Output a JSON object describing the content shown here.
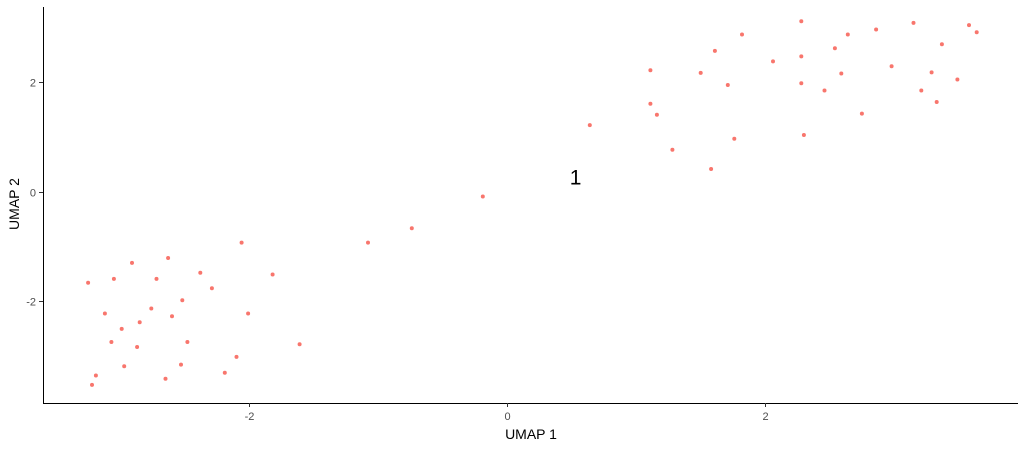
{
  "chart_data": {
    "type": "scatter",
    "xlabel": "UMAP 1",
    "ylabel": "UMAP 2",
    "xlim": [
      -3.6,
      3.96
    ],
    "ylim": [
      -3.85,
      3.36
    ],
    "x_ticks": [
      -2,
      0,
      2
    ],
    "x_tick_labels": [
      "-2",
      "0",
      "2"
    ],
    "y_ticks": [
      -2,
      0,
      2
    ],
    "y_tick_labels": [
      "-2",
      "0",
      "2"
    ],
    "grid": false,
    "point_color": "#F8766D",
    "annotations": [
      {
        "text": "1",
        "x": 0.53,
        "y": 0.26
      }
    ],
    "series": [
      {
        "points": [
          {
            "x": -3.25,
            "y": -1.66
          },
          {
            "x": -3.22,
            "y": -3.52
          },
          {
            "x": -3.19,
            "y": -3.35
          },
          {
            "x": -3.12,
            "y": -2.22
          },
          {
            "x": -3.07,
            "y": -2.74
          },
          {
            "x": -3.05,
            "y": -1.59
          },
          {
            "x": -2.99,
            "y": -2.5
          },
          {
            "x": -2.97,
            "y": -3.18
          },
          {
            "x": -2.91,
            "y": -1.3
          },
          {
            "x": -2.87,
            "y": -2.83
          },
          {
            "x": -2.85,
            "y": -2.38
          },
          {
            "x": -2.76,
            "y": -2.13
          },
          {
            "x": -2.72,
            "y": -1.59
          },
          {
            "x": -2.65,
            "y": -3.41
          },
          {
            "x": -2.63,
            "y": -1.21
          },
          {
            "x": -2.6,
            "y": -2.27
          },
          {
            "x": -2.53,
            "y": -3.15
          },
          {
            "x": -2.52,
            "y": -1.98
          },
          {
            "x": -2.48,
            "y": -2.74
          },
          {
            "x": -2.38,
            "y": -1.48
          },
          {
            "x": -2.29,
            "y": -1.76
          },
          {
            "x": -2.19,
            "y": -3.3
          },
          {
            "x": -2.1,
            "y": -3.01
          },
          {
            "x": -2.06,
            "y": -0.93
          },
          {
            "x": -2.01,
            "y": -2.22
          },
          {
            "x": -1.82,
            "y": -1.51
          },
          {
            "x": -1.61,
            "y": -2.78
          },
          {
            "x": -1.08,
            "y": -0.93
          },
          {
            "x": -0.74,
            "y": -0.67
          },
          {
            "x": -0.19,
            "y": -0.09
          },
          {
            "x": 0.64,
            "y": 1.21
          },
          {
            "x": 1.11,
            "y": 2.21
          },
          {
            "x": 1.11,
            "y": 1.6
          },
          {
            "x": 1.16,
            "y": 1.4
          },
          {
            "x": 1.28,
            "y": 0.76
          },
          {
            "x": 1.5,
            "y": 2.16
          },
          {
            "x": 1.58,
            "y": 0.41
          },
          {
            "x": 1.61,
            "y": 2.56
          },
          {
            "x": 1.71,
            "y": 1.94
          },
          {
            "x": 1.76,
            "y": 0.96
          },
          {
            "x": 1.82,
            "y": 2.86
          },
          {
            "x": 2.06,
            "y": 2.37
          },
          {
            "x": 2.28,
            "y": 3.1
          },
          {
            "x": 2.28,
            "y": 2.46
          },
          {
            "x": 2.28,
            "y": 1.97
          },
          {
            "x": 2.3,
            "y": 1.03
          },
          {
            "x": 2.46,
            "y": 1.84
          },
          {
            "x": 2.54,
            "y": 2.61
          },
          {
            "x": 2.59,
            "y": 2.15
          },
          {
            "x": 2.64,
            "y": 2.86
          },
          {
            "x": 2.75,
            "y": 1.42
          },
          {
            "x": 2.86,
            "y": 2.95
          },
          {
            "x": 2.98,
            "y": 2.28
          },
          {
            "x": 3.15,
            "y": 3.07
          },
          {
            "x": 3.21,
            "y": 1.84
          },
          {
            "x": 3.29,
            "y": 2.17
          },
          {
            "x": 3.33,
            "y": 1.63
          },
          {
            "x": 3.37,
            "y": 2.68
          },
          {
            "x": 3.49,
            "y": 2.04
          },
          {
            "x": 3.58,
            "y": 3.03
          },
          {
            "x": 3.64,
            "y": 2.9
          }
        ]
      }
    ]
  }
}
